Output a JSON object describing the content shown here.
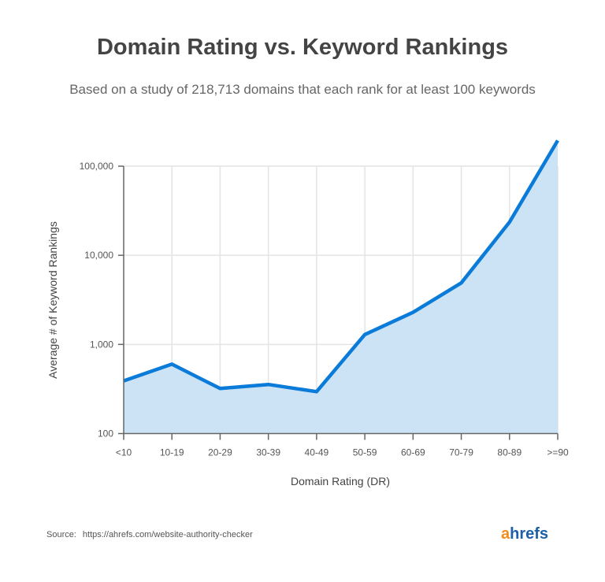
{
  "header": {
    "title": "Domain Rating vs. Keyword Rankings",
    "subtitle": "Based on a study of 218,713 domains that each rank for at least 100 keywords"
  },
  "chart_data": {
    "type": "area",
    "title": "Domain Rating vs. Keyword Rankings",
    "xlabel": "Domain Rating (DR)",
    "ylabel": "Average # of Keyword Rankings",
    "categories": [
      "<10",
      "10-19",
      "20-29",
      "30-39",
      "40-49",
      "50-59",
      "60-69",
      "70-79",
      "80-89",
      ">=90"
    ],
    "values": [
      390,
      600,
      320,
      355,
      295,
      1290,
      2290,
      4900,
      23600,
      194000
    ],
    "y_scale": "log",
    "ylim": [
      100,
      100000
    ],
    "y_ticks": [
      100,
      1000,
      10000,
      100000
    ],
    "y_tick_labels": [
      "100",
      "1,000",
      "10,000",
      "100,000"
    ],
    "grid": true,
    "colors": {
      "line": "#0a7bd8",
      "fill": "#c9e1f5",
      "grid": "#e4e4e4",
      "axis": "#666666"
    }
  },
  "footer": {
    "source_label": "Source:",
    "source_url": "https://ahrefs.com/website-authority-checker",
    "logo_text": "ahrefs",
    "logo_accent": "a",
    "logo_rest": "hrefs"
  }
}
